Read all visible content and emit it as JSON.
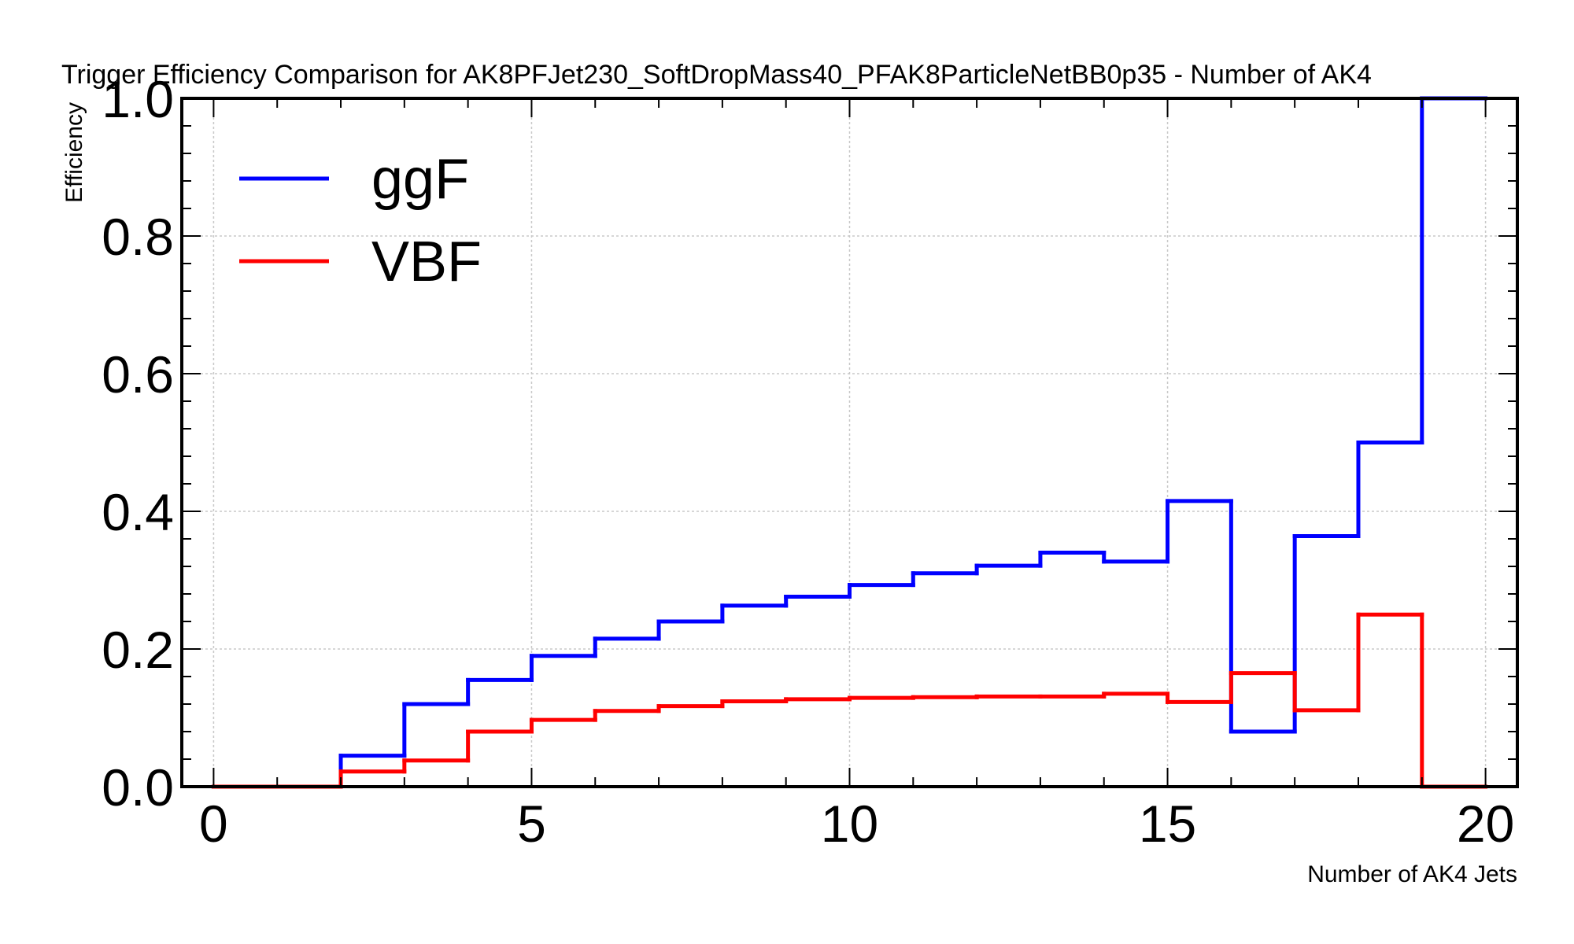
{
  "chart_data": {
    "type": "line",
    "drawstyle": "step",
    "title": "Trigger Efficiency Comparison for AK8PFJet230_SoftDropMass40_PFAK8ParticleNetBB0p35 - Number of AK4",
    "xlabel": "Number of AK4 Jets",
    "ylabel": "Efficiency",
    "xlim": [
      -0.5,
      20.5
    ],
    "ylim": [
      0.0,
      1.0
    ],
    "xticks": [
      0,
      5,
      10,
      15,
      20
    ],
    "xtick_labels": [
      "0",
      "5",
      "10",
      "15",
      "20"
    ],
    "yticks": [
      0.0,
      0.2,
      0.4,
      0.6,
      0.8,
      1.0
    ],
    "ytick_labels": [
      "0.0",
      "0.2",
      "0.4",
      "0.6",
      "0.8",
      "1.0"
    ],
    "grid": true,
    "legend_position": "top-left",
    "bin_edges": [
      0,
      1,
      2,
      3,
      4,
      5,
      6,
      7,
      8,
      9,
      10,
      11,
      12,
      13,
      14,
      15,
      16,
      17,
      18,
      19,
      20
    ],
    "series": [
      {
        "name": "ggF",
        "color": "#0000ff",
        "values": [
          0,
          0,
          0.045,
          0.12,
          0.155,
          0.19,
          0.215,
          0.24,
          0.263,
          0.276,
          0.293,
          0.31,
          0.321,
          0.34,
          0.327,
          0.415,
          0.08,
          0.364,
          0.5,
          1.0
        ]
      },
      {
        "name": "VBF",
        "color": "#ff0000",
        "values": [
          0,
          0,
          0.022,
          0.038,
          0.08,
          0.097,
          0.11,
          0.117,
          0.124,
          0.127,
          0.129,
          0.13,
          0.131,
          0.131,
          0.135,
          0.123,
          0.165,
          0.111,
          0.25,
          0
        ]
      }
    ]
  }
}
